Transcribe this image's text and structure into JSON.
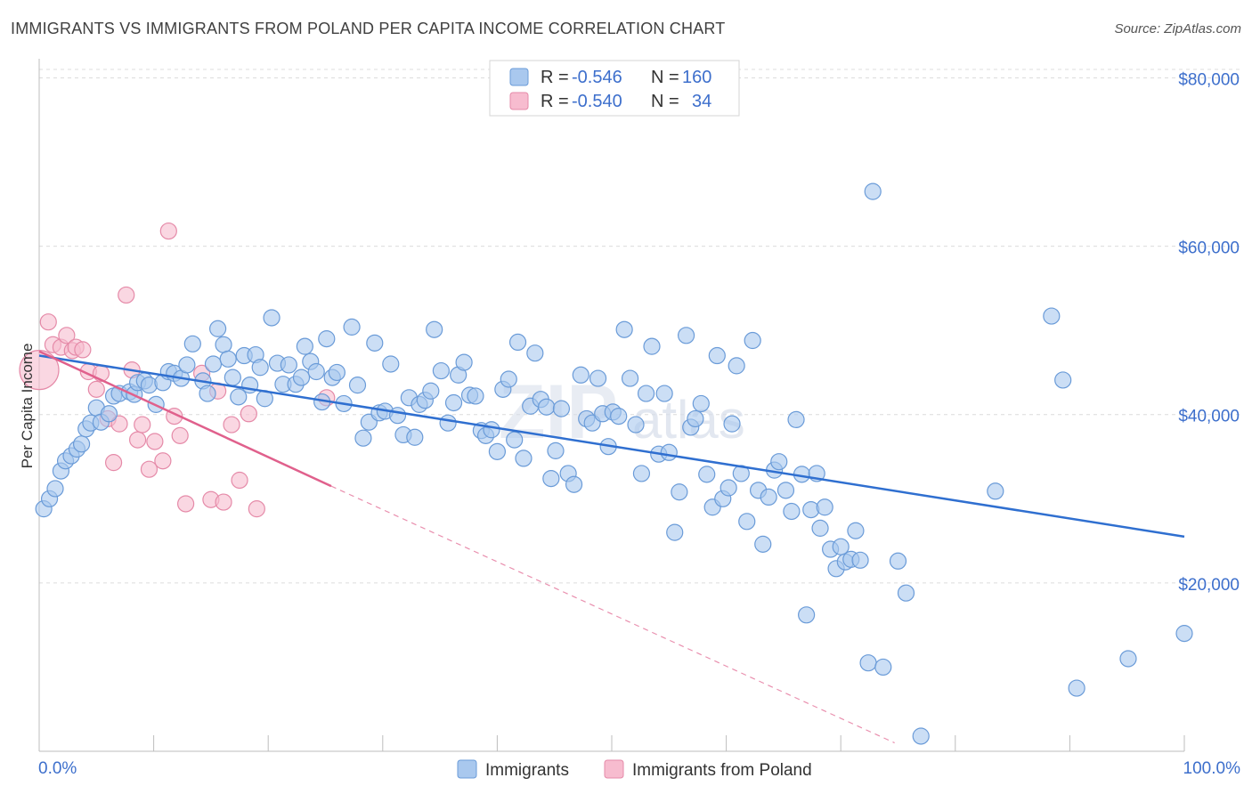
{
  "title": "IMMIGRANTS VS IMMIGRANTS FROM POLAND PER CAPITA INCOME CORRELATION CHART",
  "source": "Source: ZipAtlas.com",
  "watermark": {
    "zip": "ZIP",
    "atlas": "atlas"
  },
  "colors": {
    "blue_fill": "#a9c8ee",
    "blue_stroke": "#6a9bd8",
    "blue_line": "#2f6fd0",
    "pink_fill": "#f7bccf",
    "pink_stroke": "#e58aa8",
    "pink_line": "#e0608c",
    "tick_text": "#3d6fcc",
    "grid": "#dcdcdc"
  },
  "legend": [
    {
      "r_label": "R =",
      "r_value": "-0.546",
      "n_label": "N =",
      "n_value": "160"
    },
    {
      "r_label": "R =",
      "r_value": "-0.540",
      "n_label": "N =",
      "n_value": "34"
    }
  ],
  "bottom_legend": [
    {
      "label": "Immigrants"
    },
    {
      "label": "Immigrants from Poland"
    }
  ],
  "chart_data": {
    "type": "scatter",
    "title": "IMMIGRANTS VS IMMIGRANTS FROM POLAND PER CAPITA INCOME CORRELATION CHART",
    "xlabel": "",
    "ylabel": "Per Capita Income",
    "xlim": [
      0,
      100
    ],
    "ylim": [
      0,
      81000
    ],
    "x_tick_labels": [
      "0.0%",
      "100.0%"
    ],
    "y_ticks": [
      20000,
      40000,
      60000,
      80000
    ],
    "y_tick_labels": [
      "$20,000",
      "$40,000",
      "$60,000",
      "$80,000"
    ],
    "grid": true,
    "legend_placement": "top-center",
    "series": [
      {
        "name": "Immigrants",
        "trend": {
          "x": [
            0,
            100
          ],
          "y": [
            47000,
            25500
          ]
        },
        "points": [
          [
            0.4,
            28800
          ],
          [
            0.9,
            30000
          ],
          [
            1.4,
            31200
          ],
          [
            1.9,
            33300
          ],
          [
            2.3,
            34500
          ],
          [
            2.8,
            35100
          ],
          [
            3.3,
            35900
          ],
          [
            3.7,
            36500
          ],
          [
            4.1,
            38300
          ],
          [
            4.5,
            39000
          ],
          [
            5.0,
            40800
          ],
          [
            5.4,
            39100
          ],
          [
            6.1,
            40100
          ],
          [
            6.5,
            42200
          ],
          [
            7.0,
            42500
          ],
          [
            7.9,
            42700
          ],
          [
            8.3,
            42400
          ],
          [
            8.6,
            43800
          ],
          [
            9.2,
            44000
          ],
          [
            9.6,
            43500
          ],
          [
            10.2,
            41200
          ],
          [
            10.8,
            43800
          ],
          [
            11.3,
            45100
          ],
          [
            11.8,
            44900
          ],
          [
            12.4,
            44300
          ],
          [
            12.9,
            45900
          ],
          [
            13.4,
            48400
          ],
          [
            14.3,
            44000
          ],
          [
            14.7,
            42500
          ],
          [
            15.2,
            46000
          ],
          [
            15.6,
            50200
          ],
          [
            16.1,
            48300
          ],
          [
            16.5,
            46600
          ],
          [
            16.9,
            44400
          ],
          [
            17.4,
            42100
          ],
          [
            17.9,
            47000
          ],
          [
            18.4,
            43500
          ],
          [
            18.9,
            47100
          ],
          [
            19.3,
            45600
          ],
          [
            19.7,
            41900
          ],
          [
            20.3,
            51500
          ],
          [
            20.8,
            46100
          ],
          [
            21.3,
            43600
          ],
          [
            21.8,
            45900
          ],
          [
            22.4,
            43600
          ],
          [
            22.9,
            44400
          ],
          [
            23.2,
            48100
          ],
          [
            23.7,
            46300
          ],
          [
            24.2,
            45100
          ],
          [
            24.7,
            41500
          ],
          [
            25.1,
            49000
          ],
          [
            25.6,
            44400
          ],
          [
            26.0,
            45000
          ],
          [
            26.6,
            41300
          ],
          [
            27.3,
            50400
          ],
          [
            27.8,
            43500
          ],
          [
            28.3,
            37200
          ],
          [
            28.8,
            39100
          ],
          [
            29.3,
            48500
          ],
          [
            29.7,
            40200
          ],
          [
            30.2,
            40400
          ],
          [
            30.7,
            46000
          ],
          [
            31.3,
            39900
          ],
          [
            31.8,
            37600
          ],
          [
            32.3,
            42000
          ],
          [
            32.8,
            37300
          ],
          [
            33.2,
            41200
          ],
          [
            33.7,
            41700
          ],
          [
            34.2,
            42800
          ],
          [
            34.5,
            50100
          ],
          [
            35.1,
            45200
          ],
          [
            35.7,
            39000
          ],
          [
            36.2,
            41400
          ],
          [
            36.6,
            44700
          ],
          [
            37.1,
            46200
          ],
          [
            37.6,
            42300
          ],
          [
            38.1,
            42200
          ],
          [
            38.6,
            38100
          ],
          [
            39.0,
            37500
          ],
          [
            39.5,
            38200
          ],
          [
            40.0,
            35600
          ],
          [
            40.5,
            43000
          ],
          [
            41.0,
            44200
          ],
          [
            41.5,
            37000
          ],
          [
            41.8,
            48600
          ],
          [
            42.3,
            34800
          ],
          [
            42.9,
            41000
          ],
          [
            43.3,
            47300
          ],
          [
            43.8,
            41800
          ],
          [
            44.3,
            40900
          ],
          [
            44.7,
            32400
          ],
          [
            45.1,
            35700
          ],
          [
            45.6,
            40700
          ],
          [
            46.2,
            33000
          ],
          [
            46.7,
            31700
          ],
          [
            47.3,
            44700
          ],
          [
            47.8,
            39500
          ],
          [
            48.3,
            39000
          ],
          [
            48.8,
            44300
          ],
          [
            49.2,
            40100
          ],
          [
            49.7,
            36200
          ],
          [
            50.1,
            40300
          ],
          [
            50.6,
            39800
          ],
          [
            51.1,
            50100
          ],
          [
            51.6,
            44300
          ],
          [
            52.1,
            38800
          ],
          [
            52.6,
            33000
          ],
          [
            53.0,
            42500
          ],
          [
            53.5,
            48100
          ],
          [
            54.1,
            35300
          ],
          [
            54.6,
            42500
          ],
          [
            55.0,
            35500
          ],
          [
            55.5,
            26000
          ],
          [
            55.9,
            30800
          ],
          [
            56.5,
            49400
          ],
          [
            56.9,
            38500
          ],
          [
            57.3,
            39500
          ],
          [
            57.8,
            41300
          ],
          [
            58.3,
            32900
          ],
          [
            58.8,
            29000
          ],
          [
            59.2,
            47000
          ],
          [
            59.7,
            30000
          ],
          [
            60.2,
            31300
          ],
          [
            60.5,
            38900
          ],
          [
            60.9,
            45800
          ],
          [
            61.3,
            33000
          ],
          [
            61.8,
            27300
          ],
          [
            62.3,
            48800
          ],
          [
            62.8,
            31000
          ],
          [
            63.2,
            24600
          ],
          [
            63.7,
            30200
          ],
          [
            64.2,
            33400
          ],
          [
            64.6,
            34400
          ],
          [
            65.2,
            31000
          ],
          [
            65.7,
            28500
          ],
          [
            66.1,
            39400
          ],
          [
            66.6,
            32900
          ],
          [
            67.0,
            16200
          ],
          [
            67.4,
            28700
          ],
          [
            67.9,
            33000
          ],
          [
            68.2,
            26500
          ],
          [
            68.6,
            29000
          ],
          [
            69.1,
            24000
          ],
          [
            69.6,
            21700
          ],
          [
            70.0,
            24300
          ],
          [
            70.4,
            22500
          ],
          [
            70.9,
            22800
          ],
          [
            71.3,
            26200
          ],
          [
            71.7,
            22700
          ],
          [
            72.4,
            10500
          ],
          [
            73.7,
            10000
          ],
          [
            75.0,
            22600
          ],
          [
            75.7,
            18800
          ],
          [
            77.0,
            1800
          ],
          [
            83.5,
            30900
          ],
          [
            88.4,
            51700
          ],
          [
            89.4,
            44100
          ],
          [
            90.6,
            7500
          ],
          [
            95.1,
            11000
          ],
          [
            100,
            14000
          ],
          [
            72.8,
            66500
          ]
        ]
      },
      {
        "name": "Immigrants from Poland",
        "trend": {
          "x": [
            0,
            25.5
          ],
          "y": [
            47500,
            31500
          ]
        },
        "trend_dashed": {
          "x": [
            25.5,
            74.7
          ],
          "y": [
            31500,
            1000
          ]
        },
        "points": [
          [
            0,
            45300
          ],
          [
            0.8,
            51000
          ],
          [
            1.2,
            48300
          ],
          [
            1.9,
            48000
          ],
          [
            2.4,
            49400
          ],
          [
            2.9,
            47600
          ],
          [
            3.2,
            48000
          ],
          [
            3.8,
            47700
          ],
          [
            4.3,
            45100
          ],
          [
            5.0,
            43000
          ],
          [
            5.4,
            44900
          ],
          [
            6.0,
            39500
          ],
          [
            6.5,
            34300
          ],
          [
            7.0,
            38900
          ],
          [
            7.6,
            54200
          ],
          [
            8.1,
            45300
          ],
          [
            8.6,
            37000
          ],
          [
            9.0,
            38800
          ],
          [
            9.6,
            33500
          ],
          [
            10.1,
            36800
          ],
          [
            10.8,
            34500
          ],
          [
            11.3,
            61800
          ],
          [
            11.8,
            39800
          ],
          [
            12.3,
            37500
          ],
          [
            12.8,
            29400
          ],
          [
            14.2,
            44900
          ],
          [
            15.0,
            29900
          ],
          [
            15.6,
            42800
          ],
          [
            16.1,
            29600
          ],
          [
            16.8,
            38800
          ],
          [
            17.5,
            32200
          ],
          [
            18.3,
            40100
          ],
          [
            19.0,
            28800
          ],
          [
            25.1,
            42000
          ]
        ]
      }
    ]
  }
}
